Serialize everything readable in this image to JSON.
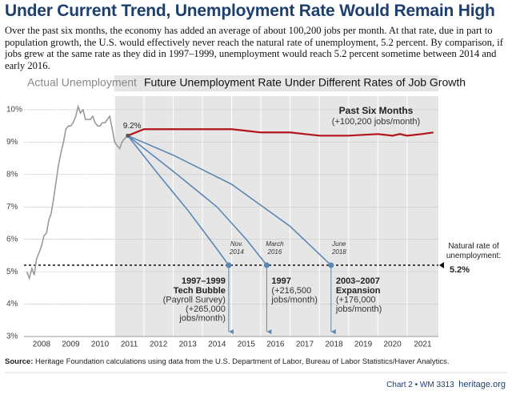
{
  "chart_data": {
    "type": "line",
    "title": "Under Current Trend, Unemployment Rate Would Remain High",
    "subtitle": "Over the past six months, the economy has added an average of about 100,200 jobs per month. At that rate, due in part to population growth, the U.S. would effectively never reach the natural rate of unemployment, 5.2 percent. By comparison, if jobs grew at the same rate as they did in 1997–1999, unemployment would reach 5.2 percent sometime between 2014 and early 2016.",
    "section_labels": [
      "Actual Unemployment",
      "Future Unemployment Rate Under Different Rates of Job Growth"
    ],
    "xlim": [
      2007.9,
      2022.07
    ],
    "xticks": [
      2008,
      2009,
      2010,
      2011,
      2012,
      2013,
      2014,
      2015,
      2016,
      2017,
      2018,
      2019,
      2020,
      2021
    ],
    "ylim": [
      3,
      10.42
    ],
    "yticks": [
      {
        "value": 3,
        "label": "3%"
      },
      {
        "value": 4,
        "label": "4%"
      },
      {
        "value": 5,
        "label": "5%"
      },
      {
        "value": 6,
        "label": "6%"
      },
      {
        "value": 7,
        "label": "7%"
      },
      {
        "value": 8,
        "label": "8%"
      },
      {
        "value": 9,
        "label": "9%"
      },
      {
        "value": 10,
        "label": "10%"
      }
    ],
    "grid": true,
    "start_label": {
      "value": 9.2,
      "label": "9.2%"
    },
    "natural_rate": {
      "text": "Natural rate of unemployment:",
      "value": 5.2,
      "label": "5.2%"
    },
    "series": [
      {
        "name": "Actual Unemployment",
        "color": "#9a9a9a",
        "x": [
          2008.0,
          2008.08,
          2008.17,
          2008.25,
          2008.33,
          2008.42,
          2008.5,
          2008.58,
          2008.67,
          2008.75,
          2008.83,
          2008.92,
          2009.0,
          2009.08,
          2009.17,
          2009.25,
          2009.33,
          2009.42,
          2009.5,
          2009.58,
          2009.67,
          2009.75,
          2009.83,
          2009.92,
          2010.0,
          2010.08,
          2010.17,
          2010.25,
          2010.33,
          2010.42,
          2010.5,
          2010.58,
          2010.67,
          2010.75,
          2010.83,
          2010.92,
          2011.0,
          2011.08,
          2011.17,
          2011.25,
          2011.33,
          2011.45
        ],
        "values": [
          5.0,
          4.8,
          5.1,
          4.9,
          5.4,
          5.6,
          5.8,
          6.1,
          6.2,
          6.6,
          6.8,
          7.3,
          7.8,
          8.3,
          8.7,
          9.0,
          9.4,
          9.5,
          9.5,
          9.6,
          9.8,
          10.1,
          9.9,
          10.0,
          9.7,
          9.7,
          9.7,
          9.8,
          9.6,
          9.5,
          9.5,
          9.6,
          9.6,
          9.7,
          9.8,
          9.4,
          9.0,
          8.9,
          8.8,
          9.0,
          9.1,
          9.2
        ]
      },
      {
        "name": "Past Six Months",
        "note": [
          "(+100,200 jobs/month)"
        ],
        "color": "#b3141c",
        "x": [
          2011.45,
          2012.0,
          2013.0,
          2014.0,
          2015.0,
          2015.5,
          2016.0,
          2017.0,
          2017.5,
          2018.0,
          2019.0,
          2020.0,
          2020.5,
          2020.75,
          2021.0,
          2021.5,
          2021.9
        ],
        "values": [
          9.2,
          9.4,
          9.4,
          9.4,
          9.4,
          9.35,
          9.3,
          9.3,
          9.25,
          9.2,
          9.2,
          9.25,
          9.2,
          9.25,
          9.2,
          9.25,
          9.3
        ]
      },
      {
        "name": "1997–1999",
        "note": [
          "Tech Bubble",
          "(Payroll Survey)",
          "(+265,000",
          "jobs/month)"
        ],
        "end_label": [
          "Nov.",
          "2014"
        ],
        "color": "#5b87b5",
        "x": [
          2011.45,
          2012.5,
          2013.5,
          2014.5,
          2014.9
        ],
        "values": [
          9.2,
          8.0,
          6.9,
          5.7,
          5.2
        ]
      },
      {
        "name": "1997",
        "note": [
          "(+216,500",
          "jobs/month)"
        ],
        "end_label": [
          "March",
          "2016"
        ],
        "color": "#5b87b5",
        "x": [
          2011.45,
          2013.0,
          2014.5,
          2015.5,
          2016.2
        ],
        "values": [
          9.2,
          8.1,
          7.0,
          6.0,
          5.2
        ]
      },
      {
        "name": "2003–2007",
        "note": [
          "Expansion",
          "(+176,000",
          "jobs/month)"
        ],
        "end_label": [
          "June",
          "2018"
        ],
        "color": "#5b87b5",
        "x": [
          2011.45,
          2013.0,
          2015.0,
          2017.0,
          2018.4
        ],
        "values": [
          9.2,
          8.6,
          7.7,
          6.4,
          5.2
        ]
      }
    ],
    "source_label": "Source:",
    "source": "Heritage Foundation calculations using data from the U.S. Department of Labor, Bureau of Labor Statistics/Haver Analytics.",
    "footer": "Chart 2 • WM 3313",
    "site": "heritage.org"
  }
}
